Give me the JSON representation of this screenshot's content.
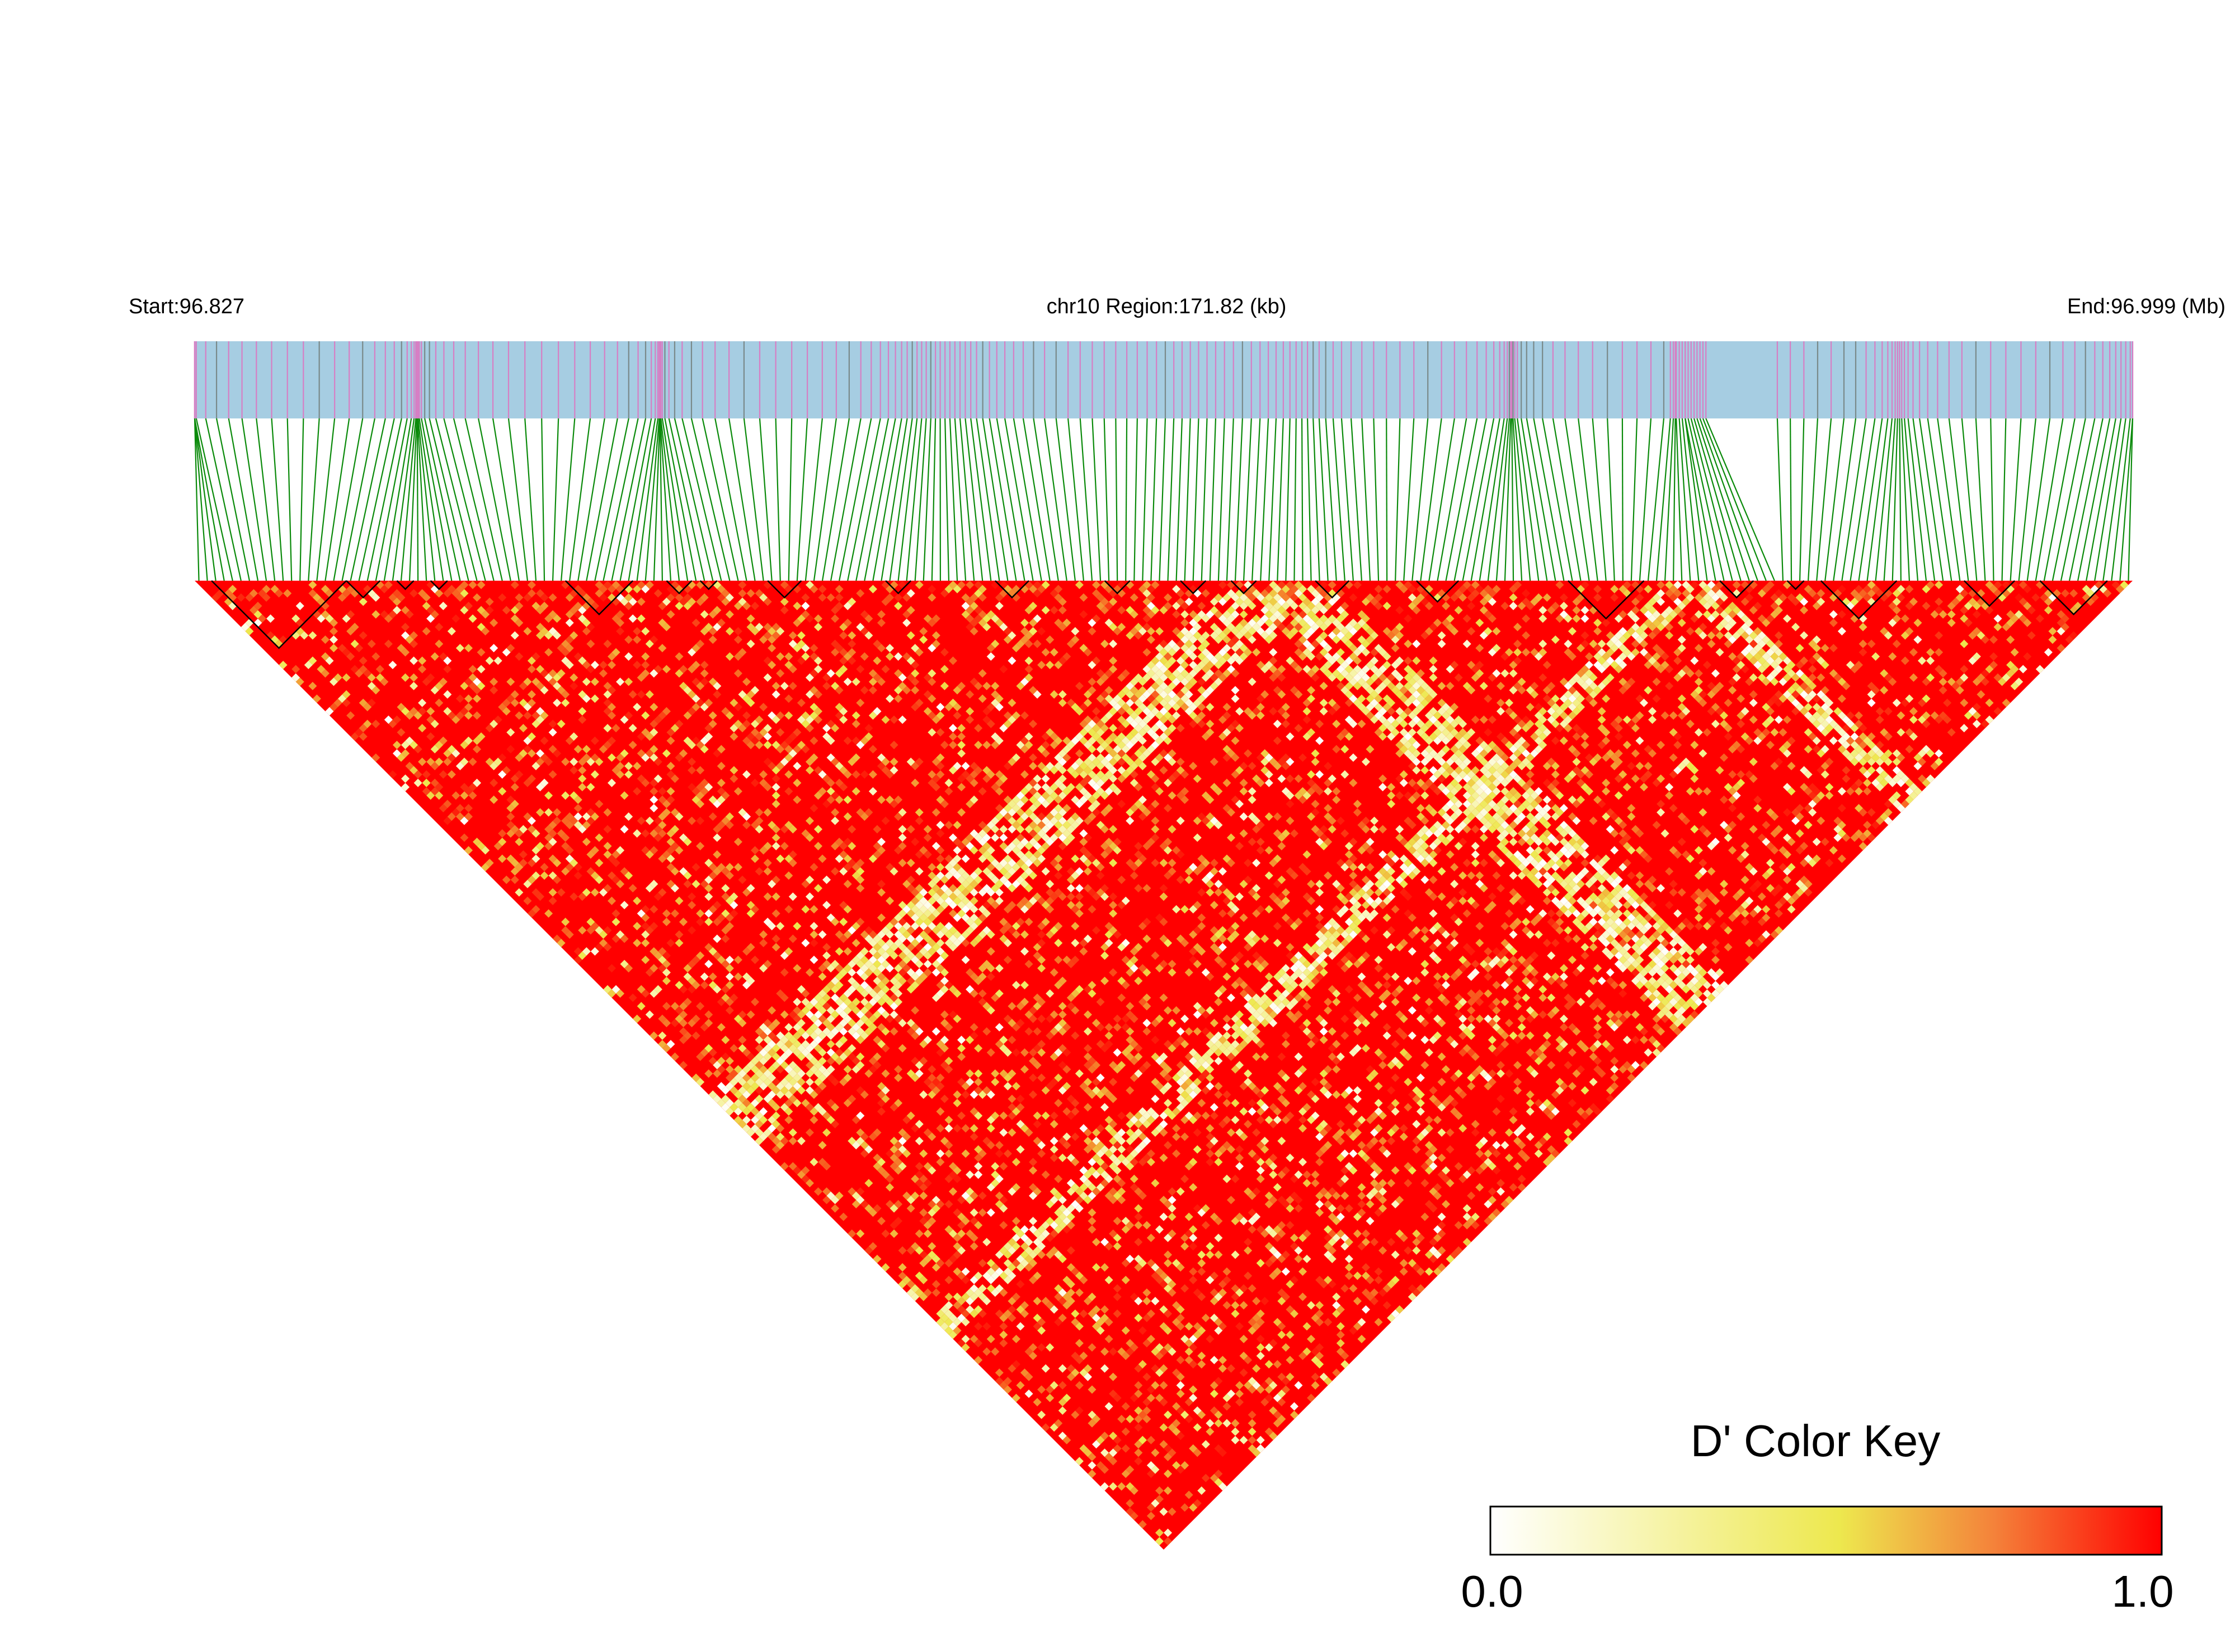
{
  "header": {
    "start_label": "Start:96.827",
    "region_label": "chr10 Region:171.82 (kb)",
    "end_label": "End:96.999 (Mb)"
  },
  "legend": {
    "title": "D' Color Key",
    "min_label": "0.0",
    "max_label": "1.0"
  },
  "colors": {
    "track_background": "#a6cde2",
    "snp_pink": "#d67fc4",
    "snp_gray": "#7a8a8a",
    "connector_green": "#0a8a0a",
    "d_prime_low": "#ffffff",
    "d_prime_mid": "#ede84e",
    "d_prime_high": "#ff0000",
    "block_outline": "#000000"
  },
  "chart_data": {
    "type": "heatmap",
    "description_of_axes": "LD triangle of pairwise D' between SNPs along chr10",
    "chromosome": "chr10",
    "start_mb": 96.827,
    "end_mb": 96.999,
    "region_kb": 171.82,
    "value_range": [
      0.0,
      1.0
    ],
    "snp_count_approx": 230,
    "notes_value_pattern": "predominantly D' near 1.0 (red); diagonal bands of low D' (white/yellow) crossing the triangle",
    "haplotype_block_count_approx": 20
  }
}
